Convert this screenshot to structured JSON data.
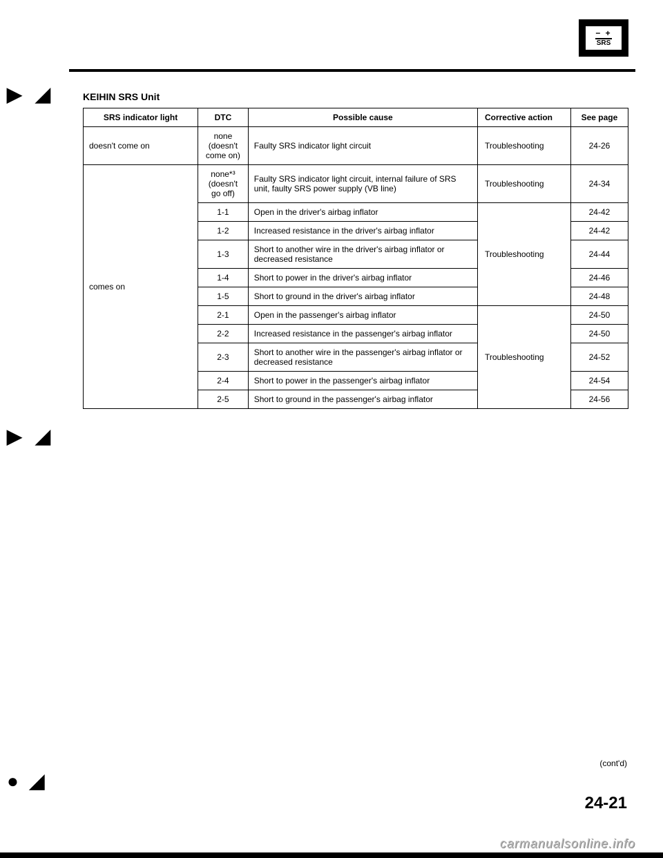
{
  "badge": {
    "top": "− +",
    "bottom": "SRS"
  },
  "decor": {
    "d1": "▶ ◢",
    "d2": "▶ ◢",
    "d3": "● ◢"
  },
  "section_title": "KEIHIN SRS Unit",
  "headers": {
    "srs": "SRS indicator light",
    "dtc": "DTC",
    "cause": "Possible cause",
    "action": "Corrective action",
    "page": "See page"
  },
  "rows": [
    {
      "srs": "doesn't come on",
      "dtc": "none (doesn't come on)",
      "cause": "Faulty SRS indicator light circuit",
      "action": "Troubleshooting",
      "page": "24-26"
    },
    {
      "srs": "comes on",
      "dtc": "none*³ (doesn't go off)",
      "cause": "Faulty SRS indicator light circuit, internal failure of SRS unit, faulty SRS power supply (VB line)",
      "action": "Troubleshooting",
      "page": "24-34"
    },
    {
      "dtc": "1-1",
      "cause": "Open in the driver's airbag inflator",
      "action": "Troubleshooting",
      "page": "24-42"
    },
    {
      "dtc": "1-2",
      "cause": "Increased resistance in the driver's airbag inflator",
      "page": "24-42"
    },
    {
      "dtc": "1-3",
      "cause": "Short to another wire in the driver's airbag inflator or decreased resistance",
      "page": "24-44"
    },
    {
      "dtc": "1-4",
      "cause": "Short to power in the driver's airbag inflator",
      "page": "24-46"
    },
    {
      "dtc": "1-5",
      "cause": "Short to ground in the driver's airbag inflator",
      "page": "24-48"
    },
    {
      "dtc": "2-1",
      "cause": "Open in the passenger's airbag inflator",
      "action": "Troubleshooting",
      "page": "24-50"
    },
    {
      "dtc": "2-2",
      "cause": "Increased resistance in the passenger's airbag inflator",
      "page": "24-50"
    },
    {
      "dtc": "2-3",
      "cause": "Short to another wire in the passenger's airbag inflator or decreased resistance",
      "page": "24-52"
    },
    {
      "dtc": "2-4",
      "cause": "Short to power in the passenger's airbag inflator",
      "page": "24-54"
    },
    {
      "dtc": "2-5",
      "cause": "Short to ground in the passenger's airbag inflator",
      "page": "24-56"
    }
  ],
  "contd": "(cont'd)",
  "page_number": "24-21",
  "watermark": "carmanualsonline.info"
}
